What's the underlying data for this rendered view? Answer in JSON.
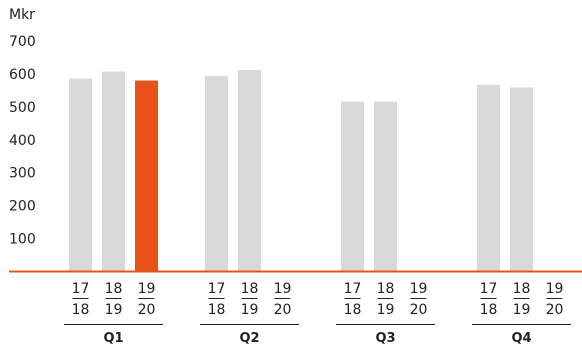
{
  "chart_data": {
    "type": "bar",
    "unit_label": "Mkr",
    "y_ticks": [
      "700",
      "600",
      "500",
      "400",
      "300",
      "200",
      "100"
    ],
    "ylim": [
      0,
      700
    ],
    "grid": false,
    "groups": [
      {
        "label": "Q1",
        "bars": [
          {
            "period_top": "17",
            "period_bottom": "18",
            "value": 586,
            "highlight": false
          },
          {
            "period_top": "18",
            "period_bottom": "19",
            "value": 607,
            "highlight": false
          },
          {
            "period_top": "19",
            "period_bottom": "20",
            "value": 580,
            "highlight": true
          }
        ]
      },
      {
        "label": "Q2",
        "bars": [
          {
            "period_top": "17",
            "period_bottom": "18",
            "value": 594,
            "highlight": false
          },
          {
            "period_top": "18",
            "period_bottom": "19",
            "value": 612,
            "highlight": false
          },
          {
            "period_top": "19",
            "period_bottom": "20",
            "value": null,
            "highlight": false
          }
        ]
      },
      {
        "label": "Q3",
        "bars": [
          {
            "period_top": "17",
            "period_bottom": "18",
            "value": 516,
            "highlight": false
          },
          {
            "period_top": "18",
            "period_bottom": "19",
            "value": 516,
            "highlight": false
          },
          {
            "period_top": "19",
            "period_bottom": "20",
            "value": null,
            "highlight": false
          }
        ]
      },
      {
        "label": "Q4",
        "bars": [
          {
            "period_top": "17",
            "period_bottom": "18",
            "value": 567,
            "highlight": false
          },
          {
            "period_top": "18",
            "period_bottom": "19",
            "value": 559,
            "highlight": false
          },
          {
            "period_top": "19",
            "period_bottom": "20",
            "value": null,
            "highlight": false
          }
        ]
      }
    ],
    "colors": {
      "bar": "#d9d9d9",
      "highlight": "#e8511a",
      "baseline": "#e8511a"
    }
  }
}
